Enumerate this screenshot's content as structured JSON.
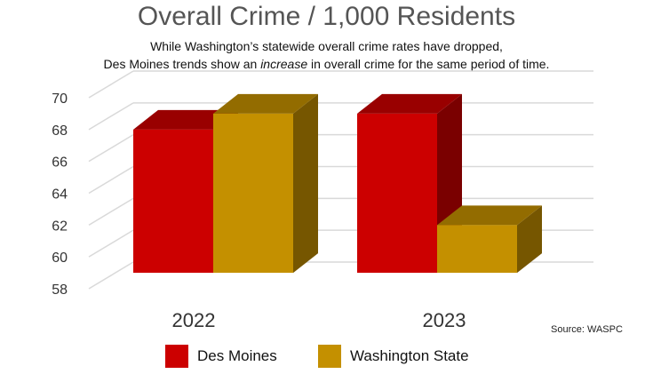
{
  "title": "Overall Crime / 1,000 Residents",
  "subtitle_line1": "While Washington’s statewide overall crime rates have dropped,",
  "subtitle_line2_pre": "Des Moines trends show an ",
  "subtitle_line2_em": "increase",
  "subtitle_line2_post": " in overall crime for the same period of time.",
  "source": "Source:  WASPC",
  "colors": {
    "des_moines": "#cc0000",
    "washington_state": "#c49000",
    "grid": "#d9d9d9"
  },
  "chart_data": {
    "type": "bar",
    "title": "Overall Crime / 1,000 Residents",
    "categories": [
      "2022",
      "2023"
    ],
    "series": [
      {
        "name": "Des Moines",
        "values": [
          68,
          69
        ]
      },
      {
        "name": "Washington State",
        "values": [
          69,
          62
        ]
      }
    ],
    "ylim": [
      58,
      70
    ],
    "yticks": [
      58,
      60,
      62,
      64,
      66,
      68,
      70
    ],
    "grid": true,
    "legend_position": "bottom",
    "style": "3d-column"
  }
}
